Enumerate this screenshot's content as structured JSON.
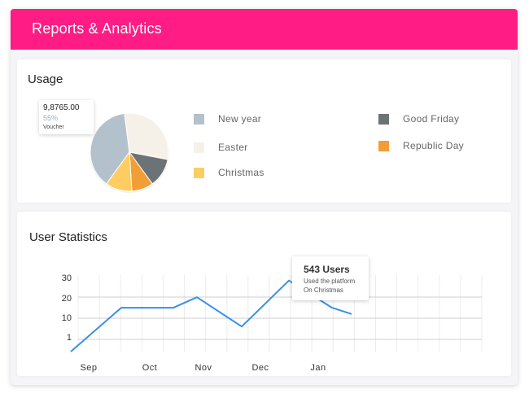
{
  "header": {
    "title": "Reports & Analytics",
    "color": "#ff1c84"
  },
  "usage": {
    "title": "Usage",
    "legend": [
      {
        "label": "New year",
        "color": "#b3c1cc"
      },
      {
        "label": "Easter",
        "color": "#f6f1e8"
      },
      {
        "label": "Christmas",
        "color": "#fdcd62"
      },
      {
        "label": "Good Friday",
        "color": "#6b7377"
      },
      {
        "label": "Republic Day",
        "color": "#f29e36"
      }
    ],
    "tooltip": {
      "value": "9,8765.00",
      "percent": "55%",
      "label": "Voucher"
    }
  },
  "stats": {
    "title": "User Statistics",
    "tooltip": {
      "title": "543 Users",
      "line1": "Used the platform",
      "line2": "On Christmas"
    }
  },
  "chart_data": [
    {
      "type": "pie",
      "title": "Usage",
      "slices": [
        {
          "name": "New year",
          "value": 38,
          "color": "#b3c1cc"
        },
        {
          "name": "Easter",
          "value": 30,
          "color": "#f6f1e8"
        },
        {
          "name": "Good Friday",
          "value": 12,
          "color": "#6b7377"
        },
        {
          "name": "Republic Day",
          "value": 9,
          "color": "#f29e36"
        },
        {
          "name": "Christmas",
          "value": 11,
          "color": "#fdcd62"
        }
      ]
    },
    {
      "type": "line",
      "title": "User Statistics",
      "categories": [
        "Sep",
        "Oct",
        "Nov",
        "Dec",
        "Jan"
      ],
      "yticks": [
        "30",
        "20",
        "10",
        "1"
      ],
      "grid": true,
      "line_color": "#3b8fe8",
      "points": [
        {
          "x": "Sep",
          "y": -7
        },
        {
          "x": "Sep–Oct",
          "y": 14
        },
        {
          "x": "Oct–Nov",
          "y": 14
        },
        {
          "x": "Nov",
          "y": 19
        },
        {
          "x": "Nov–Dec",
          "y": 5
        },
        {
          "x": "Dec–Jan",
          "y": 27
        },
        {
          "x": "Jan",
          "y": 14
        },
        {
          "x": "Jan–",
          "y": 11
        }
      ]
    }
  ]
}
